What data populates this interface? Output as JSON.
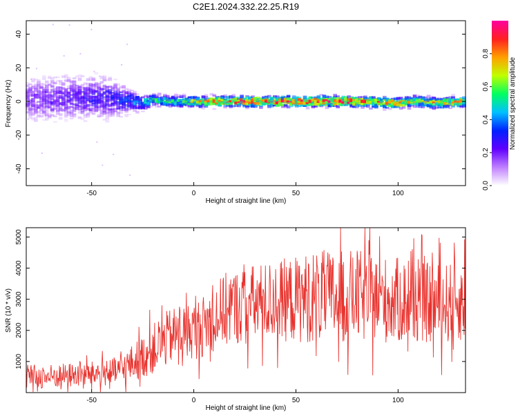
{
  "title": "C2E1.2024.332.22.25.R19",
  "colors": {
    "series": "#e8332e",
    "axis": "#000000",
    "background": "#ffffff"
  },
  "chart_data": [
    {
      "type": "heatmap",
      "title": "",
      "xlabel": "Height of straight line (km)",
      "ylabel": "Frequency (Hz)",
      "xlim": [
        -82,
        133
      ],
      "ylim": [
        -50,
        48
      ],
      "xticks": [
        "-50",
        "0",
        "50",
        "100"
      ],
      "yticks": [
        "40",
        "20",
        "0",
        "-20",
        "-40"
      ],
      "xtick_values": [
        -50,
        0,
        50,
        100
      ],
      "ytick_values": [
        40,
        20,
        0,
        -20,
        -40
      ],
      "grid": false,
      "colorbar": {
        "label": "Normalized spectral amplitude",
        "range": [
          0,
          1
        ],
        "ticks": [
          "0.0",
          "0.2",
          "0.4",
          "0.6",
          "0.8"
        ],
        "tick_values": [
          0.0,
          0.2,
          0.4,
          0.6,
          0.8
        ],
        "colormap": [
          "#ffffff",
          "#c080ff",
          "#6000ff",
          "#0020ff",
          "#00c0ff",
          "#00ff60",
          "#c0ff00",
          "#ffa000",
          "#ff2020",
          "#ff00a0"
        ]
      },
      "ridge": {
        "x": [
          -82,
          -60,
          -40,
          -35,
          -30,
          -25,
          -20,
          -10,
          0,
          20,
          40,
          60,
          80,
          100,
          110,
          120,
          133
        ],
        "frequency": [
          1,
          2,
          2,
          1,
          0,
          -1,
          1,
          0,
          0,
          0,
          0,
          0,
          0,
          -1,
          0,
          -1,
          0
        ],
        "peak_amplitude": [
          0.2,
          0.25,
          0.3,
          0.35,
          0.4,
          0.5,
          0.55,
          0.6,
          0.7,
          0.85,
          0.9,
          0.9,
          0.9,
          0.8,
          0.7,
          0.75,
          0.8
        ],
        "spread_hz": [
          12,
          12,
          11,
          8,
          6,
          4,
          3,
          3,
          3,
          3,
          3,
          3,
          3,
          3,
          3,
          3,
          3
        ]
      }
    },
    {
      "type": "line",
      "title": "",
      "xlabel": "Height of straight line (km)",
      "ylabel": "SNR (10 * v/v)",
      "xlim": [
        -82,
        133
      ],
      "ylim": [
        0,
        5300
      ],
      "xticks": [
        "-50",
        "0",
        "50",
        "100"
      ],
      "yticks": [
        "5000",
        "4000",
        "3000",
        "2000",
        "1000"
      ],
      "xtick_values": [
        -50,
        0,
        50,
        100
      ],
      "ytick_values": [
        5000,
        4000,
        3000,
        2000,
        1000
      ],
      "grid": false,
      "series": [
        {
          "x": [
            -82,
            -70,
            -60,
            -50,
            -40,
            -35,
            -30,
            -25,
            -20,
            -15,
            -10,
            -5,
            0,
            5,
            10,
            15,
            20,
            30,
            40,
            50,
            60,
            70,
            80,
            90,
            100,
            110,
            120,
            133
          ],
          "y": [
            500,
            520,
            560,
            600,
            650,
            750,
            950,
            1150,
            1400,
            1650,
            1850,
            1950,
            2000,
            2150,
            2400,
            2650,
            2750,
            2850,
            2950,
            3000,
            3100,
            3050,
            3100,
            3000,
            2950,
            2900,
            2850,
            2950
          ],
          "noise_amplitude": [
            400,
            400,
            400,
            400,
            450,
            500,
            600,
            700,
            800,
            900,
            900,
            900,
            900,
            1000,
            1100,
            1200,
            1200,
            1300,
            1300,
            1400,
            1500,
            1500,
            1500,
            1400,
            1400,
            1300,
            1300,
            1300
          ]
        }
      ]
    }
  ]
}
